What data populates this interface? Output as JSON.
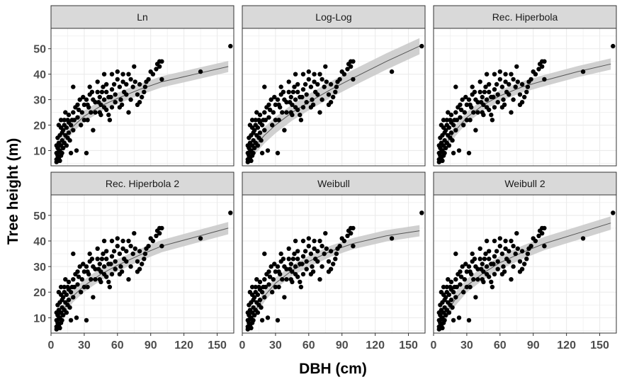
{
  "chart_data": {
    "type": "scatter",
    "xlabel": "DBH (cm)",
    "ylabel": "Tree height (m)",
    "xlim": [
      0,
      165
    ],
    "ylim": [
      4,
      58
    ],
    "xticks": [
      0,
      30,
      60,
      90,
      120,
      150
    ],
    "yticks": [
      10,
      20,
      30,
      40,
      50
    ],
    "grid": true,
    "points": [
      [
        5,
        5.5
      ],
      [
        5,
        6.5
      ],
      [
        6,
        6
      ],
      [
        6,
        8
      ],
      [
        7,
        7
      ],
      [
        5,
        9
      ],
      [
        8,
        6
      ],
      [
        8,
        10
      ],
      [
        6,
        11
      ],
      [
        7,
        9.5
      ],
      [
        9,
        8
      ],
      [
        10,
        9
      ],
      [
        5,
        12
      ],
      [
        7,
        13
      ],
      [
        9,
        12
      ],
      [
        10,
        14
      ],
      [
        11,
        11
      ],
      [
        12,
        13
      ],
      [
        6,
        15
      ],
      [
        8,
        16
      ],
      [
        10,
        17
      ],
      [
        13,
        16
      ],
      [
        14,
        12
      ],
      [
        9,
        19
      ],
      [
        11,
        18
      ],
      [
        12,
        20
      ],
      [
        14,
        19
      ],
      [
        15,
        15
      ],
      [
        16,
        17
      ],
      [
        17,
        14
      ],
      [
        7,
        20
      ],
      [
        9,
        22
      ],
      [
        12,
        22
      ],
      [
        15,
        22
      ],
      [
        18,
        20
      ],
      [
        20,
        18
      ],
      [
        13,
        25
      ],
      [
        16,
        24
      ],
      [
        19,
        22
      ],
      [
        21,
        22
      ],
      [
        22,
        27
      ],
      [
        25,
        26
      ],
      [
        24,
        23
      ],
      [
        28,
        25
      ],
      [
        30,
        28
      ],
      [
        29,
        31
      ],
      [
        32,
        30
      ],
      [
        34,
        27
      ],
      [
        35,
        32
      ],
      [
        38,
        30
      ],
      [
        40,
        29
      ],
      [
        36,
        25
      ],
      [
        33,
        22
      ],
      [
        42,
        33
      ],
      [
        44,
        31
      ],
      [
        45,
        28
      ],
      [
        47,
        35
      ],
      [
        48,
        30
      ],
      [
        50,
        33
      ],
      [
        52,
        31
      ],
      [
        55,
        34
      ],
      [
        57,
        36
      ],
      [
        58,
        32
      ],
      [
        60,
        38
      ],
      [
        62,
        35
      ],
      [
        63,
        30
      ],
      [
        65,
        37
      ],
      [
        66,
        33
      ],
      [
        68,
        36
      ],
      [
        70,
        40
      ],
      [
        72,
        38
      ],
      [
        74,
        35
      ],
      [
        75,
        43
      ],
      [
        76,
        37
      ],
      [
        78,
        32
      ],
      [
        80,
        36
      ],
      [
        82,
        31
      ],
      [
        85,
        35
      ],
      [
        88,
        38
      ],
      [
        90,
        41
      ],
      [
        92,
        40
      ],
      [
        95,
        42
      ],
      [
        96,
        44
      ],
      [
        98,
        45
      ],
      [
        100,
        38
      ],
      [
        40,
        25
      ],
      [
        45,
        24
      ],
      [
        50,
        26
      ],
      [
        55,
        27
      ],
      [
        53,
        22
      ],
      [
        30,
        22
      ],
      [
        27,
        20
      ],
      [
        35,
        35
      ],
      [
        42,
        37
      ],
      [
        48,
        40
      ],
      [
        55,
        40
      ],
      [
        60,
        41
      ],
      [
        65,
        40
      ],
      [
        20,
        35
      ],
      [
        44,
        25
      ],
      [
        18,
        9
      ],
      [
        23,
        10
      ],
      [
        32,
        9
      ],
      [
        38,
        18
      ],
      [
        70,
        25
      ],
      [
        72,
        30
      ],
      [
        78,
        28
      ],
      [
        62,
        27
      ],
      [
        58,
        29
      ],
      [
        46,
        33
      ],
      [
        50,
        36
      ],
      [
        54,
        31
      ],
      [
        43,
        29
      ],
      [
        48,
        27
      ],
      [
        52,
        24
      ],
      [
        135,
        41
      ],
      [
        162,
        51
      ],
      [
        100,
        45
      ],
      [
        98,
        43
      ],
      [
        86,
        37
      ],
      [
        84,
        33
      ],
      [
        80,
        29
      ],
      [
        68,
        32
      ],
      [
        64,
        28
      ],
      [
        37,
        33
      ],
      [
        33,
        28
      ],
      [
        26,
        30
      ],
      [
        24,
        28
      ],
      [
        20,
        25
      ],
      [
        16,
        21
      ]
    ],
    "series": [
      {
        "name": "Ln",
        "fit_x": [
          5,
          10,
          20,
          30,
          45,
          60,
          80,
          100,
          130,
          160
        ],
        "fit_y": [
          8,
          13.5,
          19.5,
          23.5,
          27.5,
          30.5,
          34,
          37,
          40,
          43
        ],
        "band": 2.2
      },
      {
        "name": "Log-Log",
        "fit_x": [
          5,
          10,
          20,
          30,
          45,
          60,
          80,
          100,
          130,
          160
        ],
        "fit_y": [
          7.5,
          11,
          16,
          20,
          25,
          29,
          34,
          38.5,
          45,
          51
        ],
        "band": 3.2
      },
      {
        "name": "Rec. Hiperbola",
        "fit_x": [
          5,
          10,
          20,
          30,
          45,
          60,
          80,
          100,
          130,
          160
        ],
        "fit_y": [
          7.5,
          12,
          18,
          23,
          28,
          31.5,
          35,
          37.5,
          41,
          44
        ],
        "band": 2.2
      },
      {
        "name": "Rec. Hiperbola 2",
        "fit_x": [
          5,
          10,
          20,
          30,
          45,
          60,
          80,
          100,
          130,
          160
        ],
        "fit_y": [
          8,
          12.5,
          18.5,
          22.5,
          27,
          30.5,
          34.5,
          38,
          41.5,
          45
        ],
        "band": 2.4
      },
      {
        "name": "Weibull",
        "fit_x": [
          5,
          10,
          20,
          30,
          45,
          60,
          80,
          100,
          130,
          160
        ],
        "fit_y": [
          7,
          11.5,
          18.5,
          23.5,
          28.5,
          32,
          36,
          39,
          42,
          44
        ],
        "band": 2.2
      },
      {
        "name": "Weibull 2",
        "fit_x": [
          5,
          10,
          20,
          30,
          45,
          60,
          80,
          100,
          130,
          160
        ],
        "fit_y": [
          7,
          11,
          17.5,
          22.5,
          27.5,
          31.5,
          35.5,
          39,
          43,
          47
        ],
        "band": 2.6
      }
    ]
  },
  "colors": {
    "panel_bg": "#ffffff",
    "grid": "#ebebeb",
    "strip_bg": "#d9d9d9",
    "band": "#c8c8c8",
    "line": "#555555",
    "point": "#000000"
  }
}
